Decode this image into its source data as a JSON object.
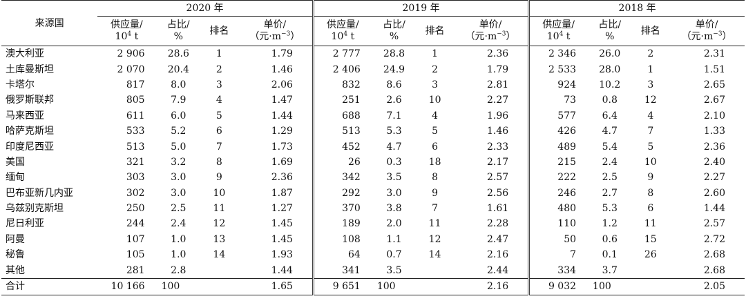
{
  "header": {
    "country_col": "来源国",
    "years": [
      "2020 年",
      "2019 年",
      "2018 年"
    ],
    "supply_line1": "供应量/",
    "supply_line2_base": "10",
    "supply_line2_sup": "4",
    "supply_line2_unit": " t",
    "share_line1": "占比/",
    "share_line2": "%",
    "rank": "排名",
    "price_line1": "单价/",
    "price_line2_pre": "（元·m",
    "price_line2_sup": "−3",
    "price_line2_post": "）"
  },
  "rows": [
    {
      "country": "澳大利亚",
      "y2020": [
        "2 906",
        "28.6",
        "1",
        "1.79"
      ],
      "y2019": [
        "2 777",
        "28.8",
        "1",
        "2.36"
      ],
      "y2018": [
        "2 346",
        "26.0",
        "2",
        "2.31"
      ]
    },
    {
      "country": "土库曼斯坦",
      "y2020": [
        "2 070",
        "20.4",
        "2",
        "1.46"
      ],
      "y2019": [
        "2 406",
        "24.9",
        "2",
        "1.79"
      ],
      "y2018": [
        "2 533",
        "28.0",
        "1",
        "1.51"
      ]
    },
    {
      "country": "卡塔尔",
      "y2020": [
        "817",
        "8.0",
        "3",
        "2.06"
      ],
      "y2019": [
        "832",
        "8.6",
        "3",
        "2.81"
      ],
      "y2018": [
        "924",
        "10.2",
        "3",
        "2.65"
      ]
    },
    {
      "country": "俄罗斯联邦",
      "y2020": [
        "805",
        "7.9",
        "4",
        "1.47"
      ],
      "y2019": [
        "251",
        "2.6",
        "10",
        "2.27"
      ],
      "y2018": [
        "73",
        "0.8",
        "12",
        "2.67"
      ]
    },
    {
      "country": "马来西亚",
      "y2020": [
        "611",
        "6.0",
        "5",
        "1.44"
      ],
      "y2019": [
        "688",
        "7.1",
        "4",
        "1.96"
      ],
      "y2018": [
        "577",
        "6.4",
        "4",
        "2.10"
      ]
    },
    {
      "country": "哈萨克斯坦",
      "y2020": [
        "533",
        "5.2",
        "6",
        "1.29"
      ],
      "y2019": [
        "513",
        "5.3",
        "5",
        "1.46"
      ],
      "y2018": [
        "426",
        "4.7",
        "7",
        "1.33"
      ]
    },
    {
      "country": "印度尼西亚",
      "y2020": [
        "513",
        "5.0",
        "7",
        "1.73"
      ],
      "y2019": [
        "452",
        "4.7",
        "6",
        "2.33"
      ],
      "y2018": [
        "489",
        "5.4",
        "5",
        "2.36"
      ]
    },
    {
      "country": "美国",
      "y2020": [
        "321",
        "3.2",
        "8",
        "1.69"
      ],
      "y2019": [
        "26",
        "0.3",
        "18",
        "2.17"
      ],
      "y2018": [
        "215",
        "2.4",
        "10",
        "2.40"
      ]
    },
    {
      "country": "缅甸",
      "y2020": [
        "303",
        "3.0",
        "9",
        "2.36"
      ],
      "y2019": [
        "342",
        "3.5",
        "8",
        "2.57"
      ],
      "y2018": [
        "222",
        "2.5",
        "9",
        "2.27"
      ]
    },
    {
      "country": "巴布亚新几内亚",
      "y2020": [
        "302",
        "3.0",
        "10",
        "1.87"
      ],
      "y2019": [
        "292",
        "3.0",
        "9",
        "2.56"
      ],
      "y2018": [
        "246",
        "2.7",
        "8",
        "2.60"
      ]
    },
    {
      "country": "乌兹别克斯坦",
      "y2020": [
        "250",
        "2.5",
        "11",
        "1.27"
      ],
      "y2019": [
        "370",
        "3.8",
        "7",
        "1.61"
      ],
      "y2018": [
        "480",
        "5.3",
        "6",
        "1.44"
      ]
    },
    {
      "country": "尼日利亚",
      "y2020": [
        "244",
        "2.4",
        "12",
        "1.45"
      ],
      "y2019": [
        "189",
        "2.0",
        "11",
        "2.28"
      ],
      "y2018": [
        "110",
        "1.2",
        "11",
        "2.57"
      ]
    },
    {
      "country": "阿曼",
      "y2020": [
        "107",
        "1.0",
        "13",
        "1.45"
      ],
      "y2019": [
        "108",
        "1.1",
        "12",
        "2.47"
      ],
      "y2018": [
        "50",
        "0.6",
        "15",
        "2.72"
      ]
    },
    {
      "country": "秘鲁",
      "y2020": [
        "105",
        "1.0",
        "14",
        "1.93"
      ],
      "y2019": [
        "64",
        "0.7",
        "14",
        "2.16"
      ],
      "y2018": [
        "7",
        "0.1",
        "26",
        "2.68"
      ]
    },
    {
      "country": "其他",
      "y2020": [
        "281",
        "2.8",
        "",
        "1.44"
      ],
      "y2019": [
        "341",
        "3.5",
        "",
        "2.44"
      ],
      "y2018": [
        "334",
        "3.7",
        "",
        "2.68"
      ]
    }
  ],
  "total": {
    "country": "合计",
    "y2020": [
      "10 166",
      "100",
      "",
      "1.65"
    ],
    "y2019": [
      "9 651",
      "100",
      "",
      "2.16"
    ],
    "y2018": [
      "9 032",
      "100",
      "",
      "2.05"
    ]
  }
}
